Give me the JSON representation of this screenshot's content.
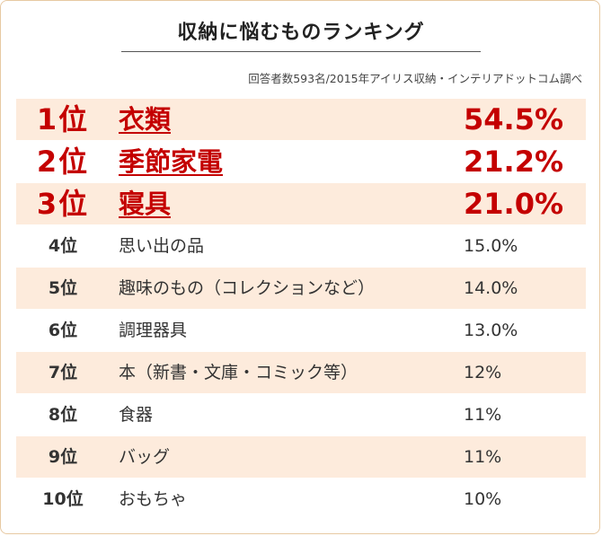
{
  "chart_data": {
    "type": "table",
    "title": "収納に悩むものランキング",
    "source": "回答者数593名/2015年アイリス収納・インテリアドットコム調べ",
    "rows": [
      {
        "rank": "1位",
        "item": "衣類",
        "value": "54.5%",
        "percent": 54.5
      },
      {
        "rank": "2位",
        "item": "季節家電",
        "value": "21.2%",
        "percent": 21.2
      },
      {
        "rank": "3位",
        "item": "寝具",
        "value": "21.0%",
        "percent": 21.0
      },
      {
        "rank": "4位",
        "item": "思い出の品",
        "value": "15.0%",
        "percent": 15.0
      },
      {
        "rank": "5位",
        "item": "趣味のもの（コレクションなど）",
        "value": "14.0%",
        "percent": 14.0
      },
      {
        "rank": "6位",
        "item": "調理器具",
        "value": "13.0%",
        "percent": 13.0
      },
      {
        "rank": "7位",
        "item": "本（新書・文庫・コミック等）",
        "value": "12%",
        "percent": 12
      },
      {
        "rank": "8位",
        "item": "食器",
        "value": "11%",
        "percent": 11
      },
      {
        "rank": "9位",
        "item": "バッグ",
        "value": "11%",
        "percent": 11
      },
      {
        "rank": "10位",
        "item": "おもちゃ",
        "value": "10%",
        "percent": 10
      }
    ]
  },
  "colors": {
    "accent": "#c40000",
    "row_shade": "#fdebdc",
    "border": "#e7c9a2",
    "text": "#333333"
  }
}
